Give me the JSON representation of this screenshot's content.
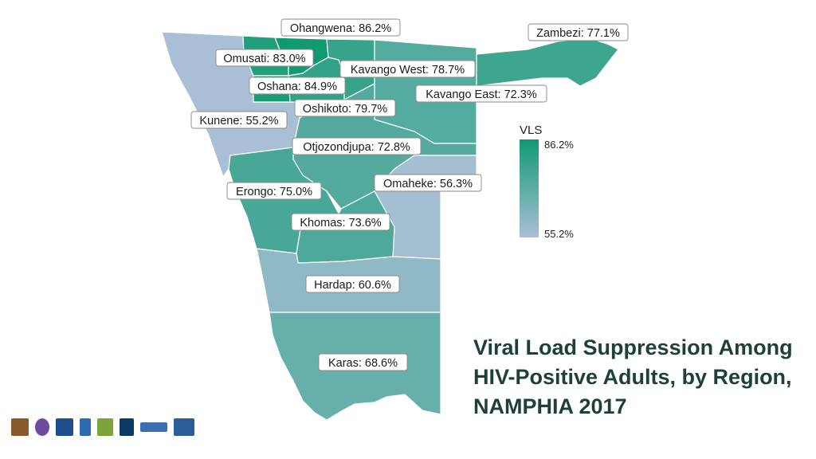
{
  "title_lines": [
    "Viral Load Suppression Among",
    "HIV-Positive Adults, by Region,",
    "NAMPHIA 2017"
  ],
  "legend": {
    "title": "VLS",
    "max_label": "86.2%",
    "min_label": "55.2%",
    "min_color": "#a9bfd6",
    "max_color": "#119a72"
  },
  "regions": [
    {
      "key": "ohangwena",
      "label": "Ohangwena: 86.2%",
      "value": 86.2
    },
    {
      "key": "zambezi",
      "label": "Zambezi: 77.1%",
      "value": 77.1
    },
    {
      "key": "omusati",
      "label": "Omusati: 83.0%",
      "value": 83.0
    },
    {
      "key": "kavango-west",
      "label": "Kavango West: 78.7%",
      "value": 78.7
    },
    {
      "key": "oshana",
      "label": "Oshana: 84.9%",
      "value": 84.9
    },
    {
      "key": "kavango-east",
      "label": "Kavango East: 72.3%",
      "value": 72.3
    },
    {
      "key": "oshikoto",
      "label": "Oshikoto: 79.7%",
      "value": 79.7
    },
    {
      "key": "kunene",
      "label": "Kunene: 55.2%",
      "value": 55.2
    },
    {
      "key": "otjozondjupa",
      "label": "Otjozondjupa: 72.8%",
      "value": 72.8
    },
    {
      "key": "omaheke",
      "label": "Omaheke: 56.3%",
      "value": 56.3
    },
    {
      "key": "erongo",
      "label": "Erongo: 75.0%",
      "value": 75.0
    },
    {
      "key": "khomas",
      "label": "Khomas: 73.6%",
      "value": 73.6
    },
    {
      "key": "hardap",
      "label": "Hardap: 60.6%",
      "value": 60.6
    },
    {
      "key": "karas",
      "label": "Karas: 68.6%",
      "value": 68.6
    }
  ],
  "logos": [
    {
      "name": "namibia-coat-of-arms-logo",
      "color": "#8a5a2b"
    },
    {
      "name": "pepfar-logo",
      "color": "#6d4a9c"
    },
    {
      "name": "cdc-logo",
      "color": "#1f4e8c"
    },
    {
      "name": "bar-chart-logo",
      "color": "#2d6bb3"
    },
    {
      "name": "globe-fund-logo",
      "color": "#7aa33a"
    },
    {
      "name": "ucsf-logo",
      "color": "#0c3c66"
    },
    {
      "name": "westat-logo",
      "color": "#3a6fb0"
    },
    {
      "name": "icap-logo",
      "color": "#2b5d9a"
    }
  ]
}
